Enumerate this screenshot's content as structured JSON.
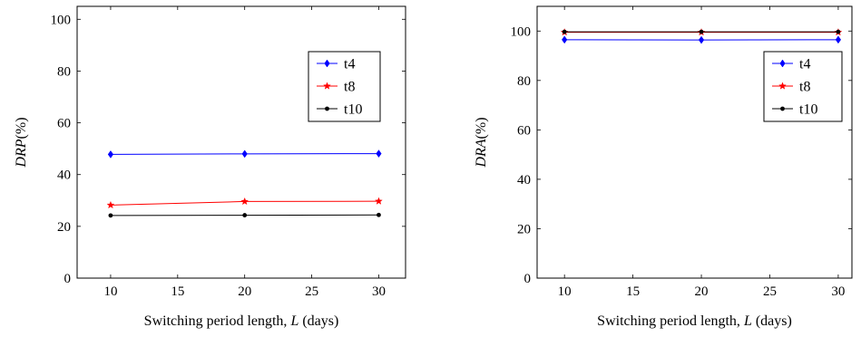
{
  "chart_data": [
    {
      "type": "line",
      "xlabel": "Switching period length, L (days)",
      "xlabel_parts": [
        "Switching period length, ",
        "L",
        " (days)"
      ],
      "ylabel": "DRP(%)",
      "ylabel_parts": [
        "DRP",
        "(%)"
      ],
      "x": [
        10,
        20,
        30
      ],
      "xlim": [
        7.5,
        32
      ],
      "ylim": [
        0,
        105
      ],
      "xticks": [
        "10",
        "15",
        "20",
        "25",
        "30"
      ],
      "yticks": [
        "0",
        "20",
        "40",
        "60",
        "80",
        "100"
      ],
      "legend_position": "right",
      "series": [
        {
          "name": "t4",
          "color": "#0000ff",
          "marker": "diamond",
          "values": [
            47.8,
            48.0,
            48.1
          ]
        },
        {
          "name": "t8",
          "color": "#ff0000",
          "marker": "star",
          "values": [
            28.2,
            29.6,
            29.7
          ]
        },
        {
          "name": "t10",
          "color": "#000000",
          "marker": "circle",
          "values": [
            24.2,
            24.3,
            24.4
          ]
        }
      ]
    },
    {
      "type": "line",
      "xlabel": "Switching period length, L (days)",
      "xlabel_parts": [
        "Switching period length, ",
        "L",
        " (days)"
      ],
      "ylabel": "DRA(%)",
      "ylabel_parts": [
        "DRA",
        "(%)"
      ],
      "x": [
        10,
        20,
        30
      ],
      "xlim": [
        8,
        31
      ],
      "ylim": [
        0,
        110
      ],
      "xticks": [
        "10",
        "15",
        "20",
        "25",
        "30"
      ],
      "yticks": [
        "0",
        "20",
        "40",
        "60",
        "80",
        "100"
      ],
      "legend_position": "right",
      "series": [
        {
          "name": "t4",
          "color": "#0000ff",
          "marker": "diamond",
          "values": [
            96.5,
            96.4,
            96.5
          ]
        },
        {
          "name": "t8",
          "color": "#ff0000",
          "marker": "star",
          "values": [
            99.5,
            99.5,
            99.5
          ]
        },
        {
          "name": "t10",
          "color": "#000000",
          "marker": "circle",
          "values": [
            99.7,
            99.7,
            99.7
          ]
        }
      ]
    }
  ]
}
